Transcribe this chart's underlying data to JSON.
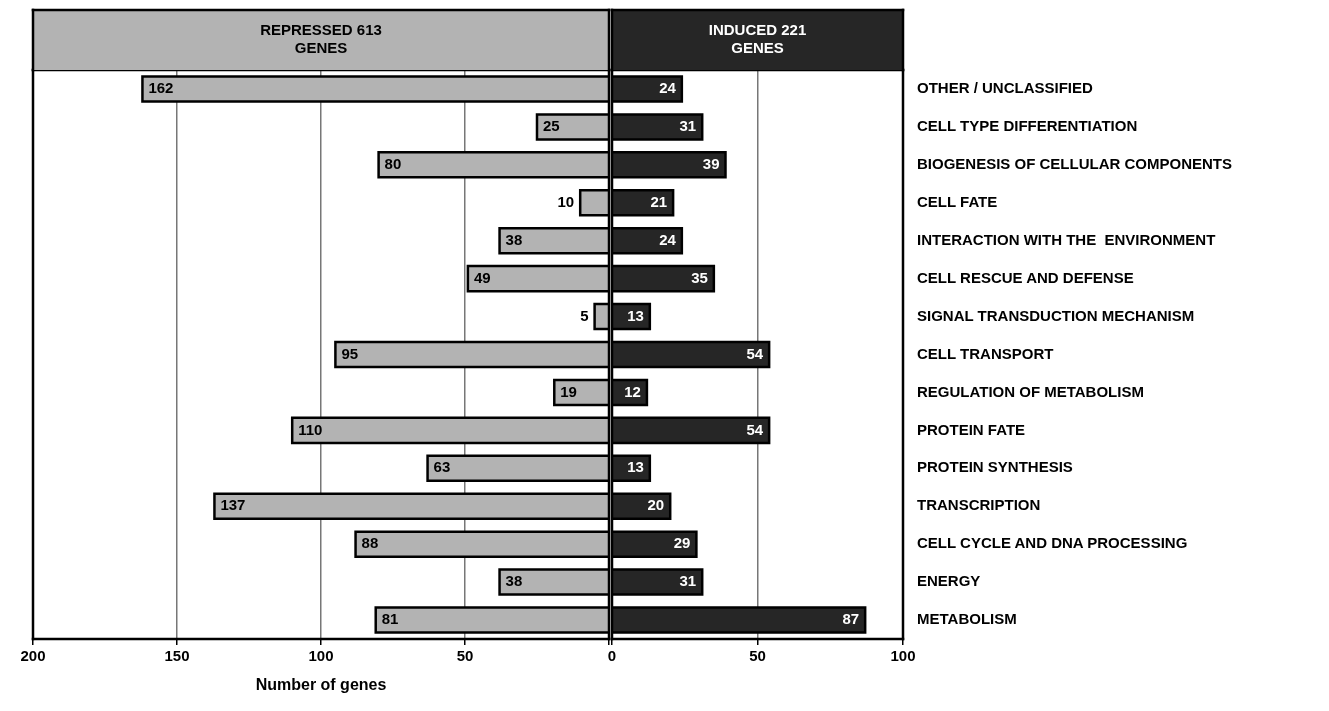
{
  "chart_data": [
    {
      "type": "bar",
      "orientation": "horizontal",
      "title": "REPRESSED 613 GENES",
      "xlabel": "Number of genes",
      "tick_labels": "x",
      "categories": [
        null,
        null,
        null,
        null,
        null,
        null,
        null,
        null,
        null,
        null,
        null,
        null,
        null,
        null,
        null
      ],
      "values": [
        162,
        25,
        80,
        10,
        38,
        49,
        5,
        95,
        19,
        110,
        63,
        137,
        88,
        38,
        81
      ],
      "color": "#b3b3b3",
      "data_labels": true,
      "xlim": [
        200,
        0
      ],
      "xticks": [
        200,
        150,
        100,
        50,
        {
          "value": 0,
          "label": null
        }
      ],
      "grid": "x"
    },
    {
      "type": "bar",
      "orientation": "horizontal",
      "title": "INDUCED 221 GENES",
      "categories": [
        "OTHER / UNCLASSIFIED",
        "CELL TYPE DIFFERENTIATION",
        "BIOGENESIS OF CELLULAR COMPONENTS",
        "CELL FATE",
        "INTERACTION WITH THE  ENVIRONMENT",
        "CELL RESCUE AND DEFENSE",
        "SIGNAL TRANSDUCTION MECHANISM",
        "CELL TRANSPORT",
        "REGULATION OF METABOLISM",
        "PROTEIN FATE",
        "PROTEIN SYNTHESIS",
        "TRANSCRIPTION",
        "CELL CYCLE AND DNA PROCESSING",
        "ENERGY",
        "METABOLISM"
      ],
      "values": [
        24,
        31,
        39,
        21,
        24,
        35,
        13,
        54,
        12,
        54,
        13,
        20,
        29,
        31,
        87
      ],
      "color": "#262626",
      "data_labels": true,
      "xlim": [
        0,
        100
      ],
      "xticks": [
        0,
        50,
        100
      ],
      "grid": "x"
    }
  ]
}
